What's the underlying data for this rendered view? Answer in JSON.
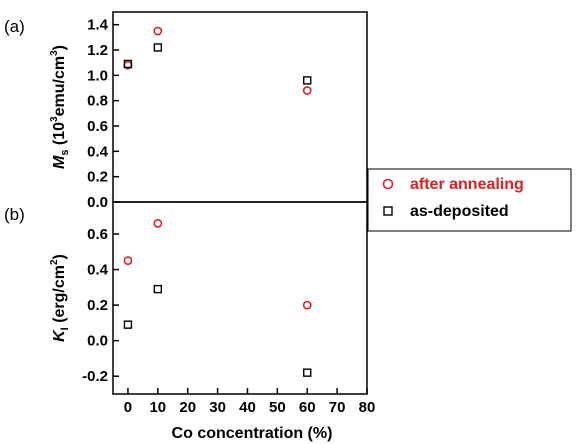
{
  "chart_data": {
    "type": "scatter",
    "panel_labels": [
      "(a)",
      "(b)"
    ],
    "xlabel": "Co concentration (%)",
    "xlim": [
      -5,
      80
    ],
    "xticks": [
      0,
      10,
      20,
      30,
      40,
      50,
      60,
      70,
      80
    ],
    "legend": {
      "placement": "right",
      "entries": [
        {
          "label": "after annealing",
          "marker": "circle",
          "color": "#e02020"
        },
        {
          "label": "as-deposited",
          "marker": "square",
          "color": "#000000"
        }
      ]
    },
    "panels": [
      {
        "id": "a",
        "ylabel_main": "M",
        "ylabel_sub": "s",
        "ylabel_rest": " (10",
        "ylabel_sup": "3",
        "ylabel_unit": "emu/cm",
        "ylabel_sup2": "3",
        "ylabel_end": ")",
        "ylim": [
          0.0,
          1.5
        ],
        "yticks": [
          "0.0",
          "0.2",
          "0.4",
          "0.6",
          "0.8",
          "1.0",
          "1.2",
          "1.4"
        ],
        "series": [
          {
            "name": "after annealing",
            "marker": "circle",
            "color": "#e02020",
            "x": [
              0,
              10,
              60
            ],
            "y": [
              1.08,
              1.35,
              0.88
            ]
          },
          {
            "name": "as-deposited",
            "marker": "square",
            "color": "#000000",
            "x": [
              0,
              10,
              60
            ],
            "y": [
              1.09,
              1.22,
              0.96
            ]
          }
        ]
      },
      {
        "id": "b",
        "ylabel_main": "K",
        "ylabel_sub": "I",
        "ylabel_rest": " (erg/cm",
        "ylabel_sup": "2",
        "ylabel_unit": "",
        "ylabel_sup2": "",
        "ylabel_end": ")",
        "ylim": [
          -0.3,
          0.78
        ],
        "yticks": [
          "-0.2",
          "0.0",
          "0.2",
          "0.4",
          "0.6"
        ],
        "series": [
          {
            "name": "after annealing",
            "marker": "circle",
            "color": "#e02020",
            "x": [
              0,
              10,
              60
            ],
            "y": [
              0.45,
              0.66,
              0.2
            ]
          },
          {
            "name": "as-deposited",
            "marker": "square",
            "color": "#000000",
            "x": [
              0,
              10,
              60
            ],
            "y": [
              0.09,
              0.29,
              -0.18
            ]
          }
        ]
      }
    ]
  }
}
